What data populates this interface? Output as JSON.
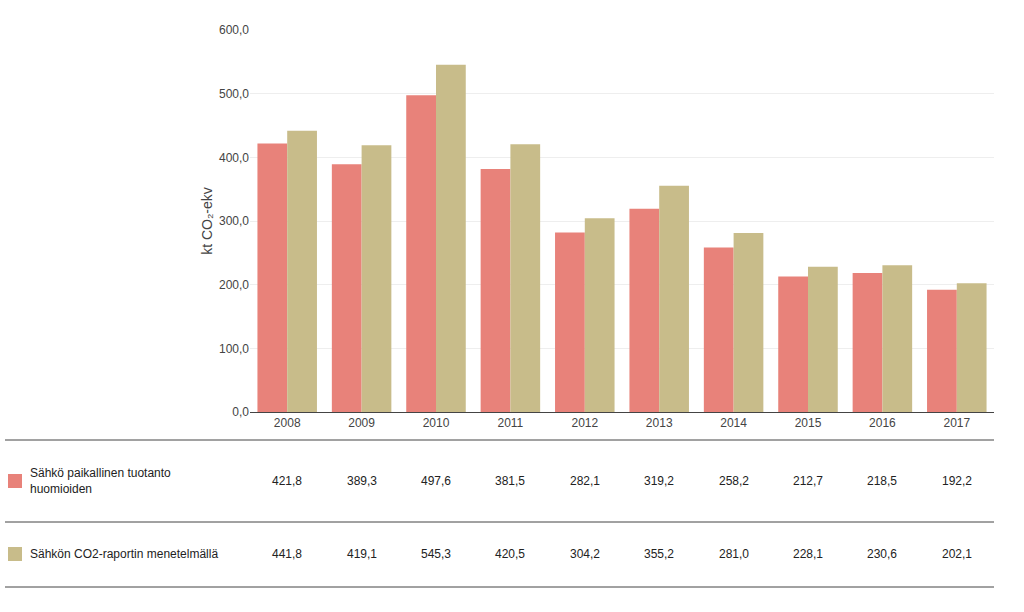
{
  "chart_data": {
    "type": "bar",
    "categories": [
      "2008",
      "2009",
      "2010",
      "2011",
      "2012",
      "2013",
      "2014",
      "2015",
      "2016",
      "2017"
    ],
    "series": [
      {
        "name": "Sähkö paikallinen tuotanto\nhuomioiden",
        "color": "#E8827A",
        "values": [
          421.8,
          389.3,
          497.6,
          381.5,
          282.1,
          319.2,
          258.2,
          212.7,
          218.5,
          192.2
        ],
        "value_labels": [
          "421,8",
          "389,3",
          "497,6",
          "381,5",
          "282,1",
          "319,2",
          "258,2",
          "212,7",
          "218,5",
          "192,2"
        ]
      },
      {
        "name": "Sähkön CO2-raportin menetelmällä",
        "color": "#C8BC8A",
        "values": [
          441.8,
          419.1,
          545.3,
          420.5,
          304.2,
          355.2,
          281.0,
          228.1,
          230.6,
          202.1
        ],
        "value_labels": [
          "441,8",
          "419,1",
          "545,3",
          "420,5",
          "304,2",
          "355,2",
          "281,0",
          "228,1",
          "230,6",
          "202,1"
        ]
      }
    ],
    "ylabel": "kt CO₂-ekv",
    "ylim": [
      0,
      600
    ],
    "yticks": [
      {
        "value": 0,
        "label": "0,0"
      },
      {
        "value": 100,
        "label": "100,0"
      },
      {
        "value": 200,
        "label": "200,0"
      },
      {
        "value": 300,
        "label": "300,0"
      },
      {
        "value": 400,
        "label": "400,0"
      },
      {
        "value": 500,
        "label": "500,0"
      },
      {
        "value": 600,
        "label": "600,0"
      }
    ],
    "grid": true
  }
}
